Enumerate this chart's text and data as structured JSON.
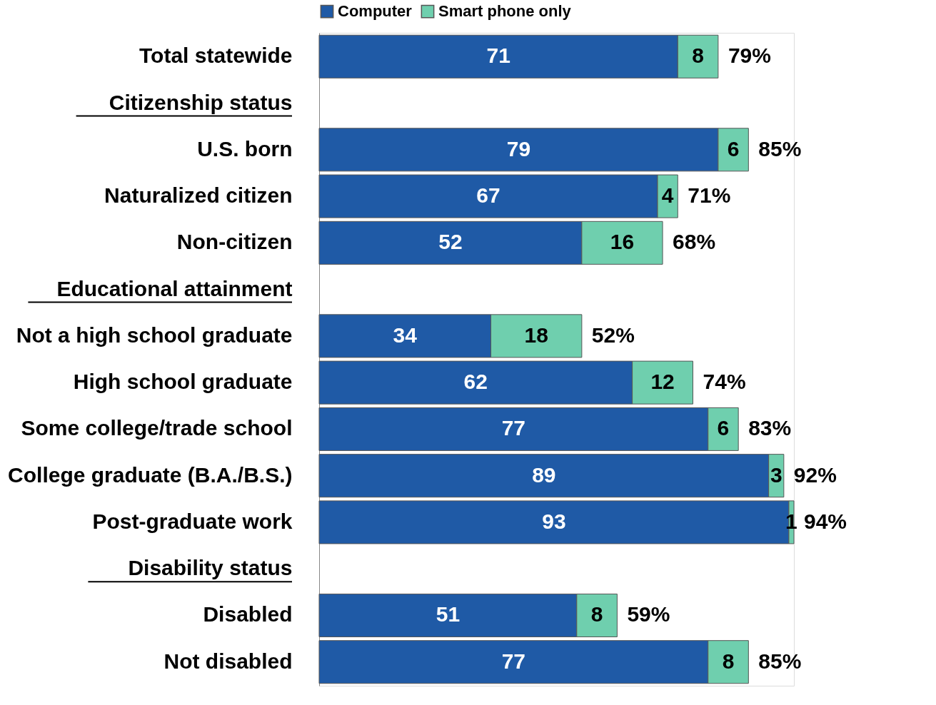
{
  "chart_data": {
    "type": "bar",
    "orientation": "horizontal",
    "stacked": true,
    "data_labels": true,
    "legend": "top",
    "grid": false,
    "categories": [
      "Total statewide",
      "Citizenship status",
      "U.S. born",
      "Naturalized citizen",
      "Non-citizen",
      "Educational attainment",
      "Not a high school graduate",
      "High school graduate",
      "Some college/trade school",
      "College graduate (B.A./B.S.)",
      "Post-graduate work",
      "Disability status",
      "Disabled",
      "Not disabled"
    ],
    "series": [
      {
        "name": "Computer",
        "color": "#1f5aa6",
        "values": [
          71,
          null,
          79,
          67,
          52,
          null,
          34,
          62,
          77,
          89,
          93,
          null,
          51,
          77
        ]
      },
      {
        "name": "Smart phone only",
        "color": "#6fcfae",
        "values": [
          8,
          null,
          6,
          4,
          16,
          null,
          18,
          12,
          6,
          3,
          1,
          null,
          8,
          8
        ]
      }
    ],
    "totals": [
      "79%",
      null,
      "85%",
      "71%",
      "68%",
      null,
      "52%",
      "74%",
      "83%",
      "92%",
      "94%",
      null,
      "59%",
      "85%"
    ]
  }
}
